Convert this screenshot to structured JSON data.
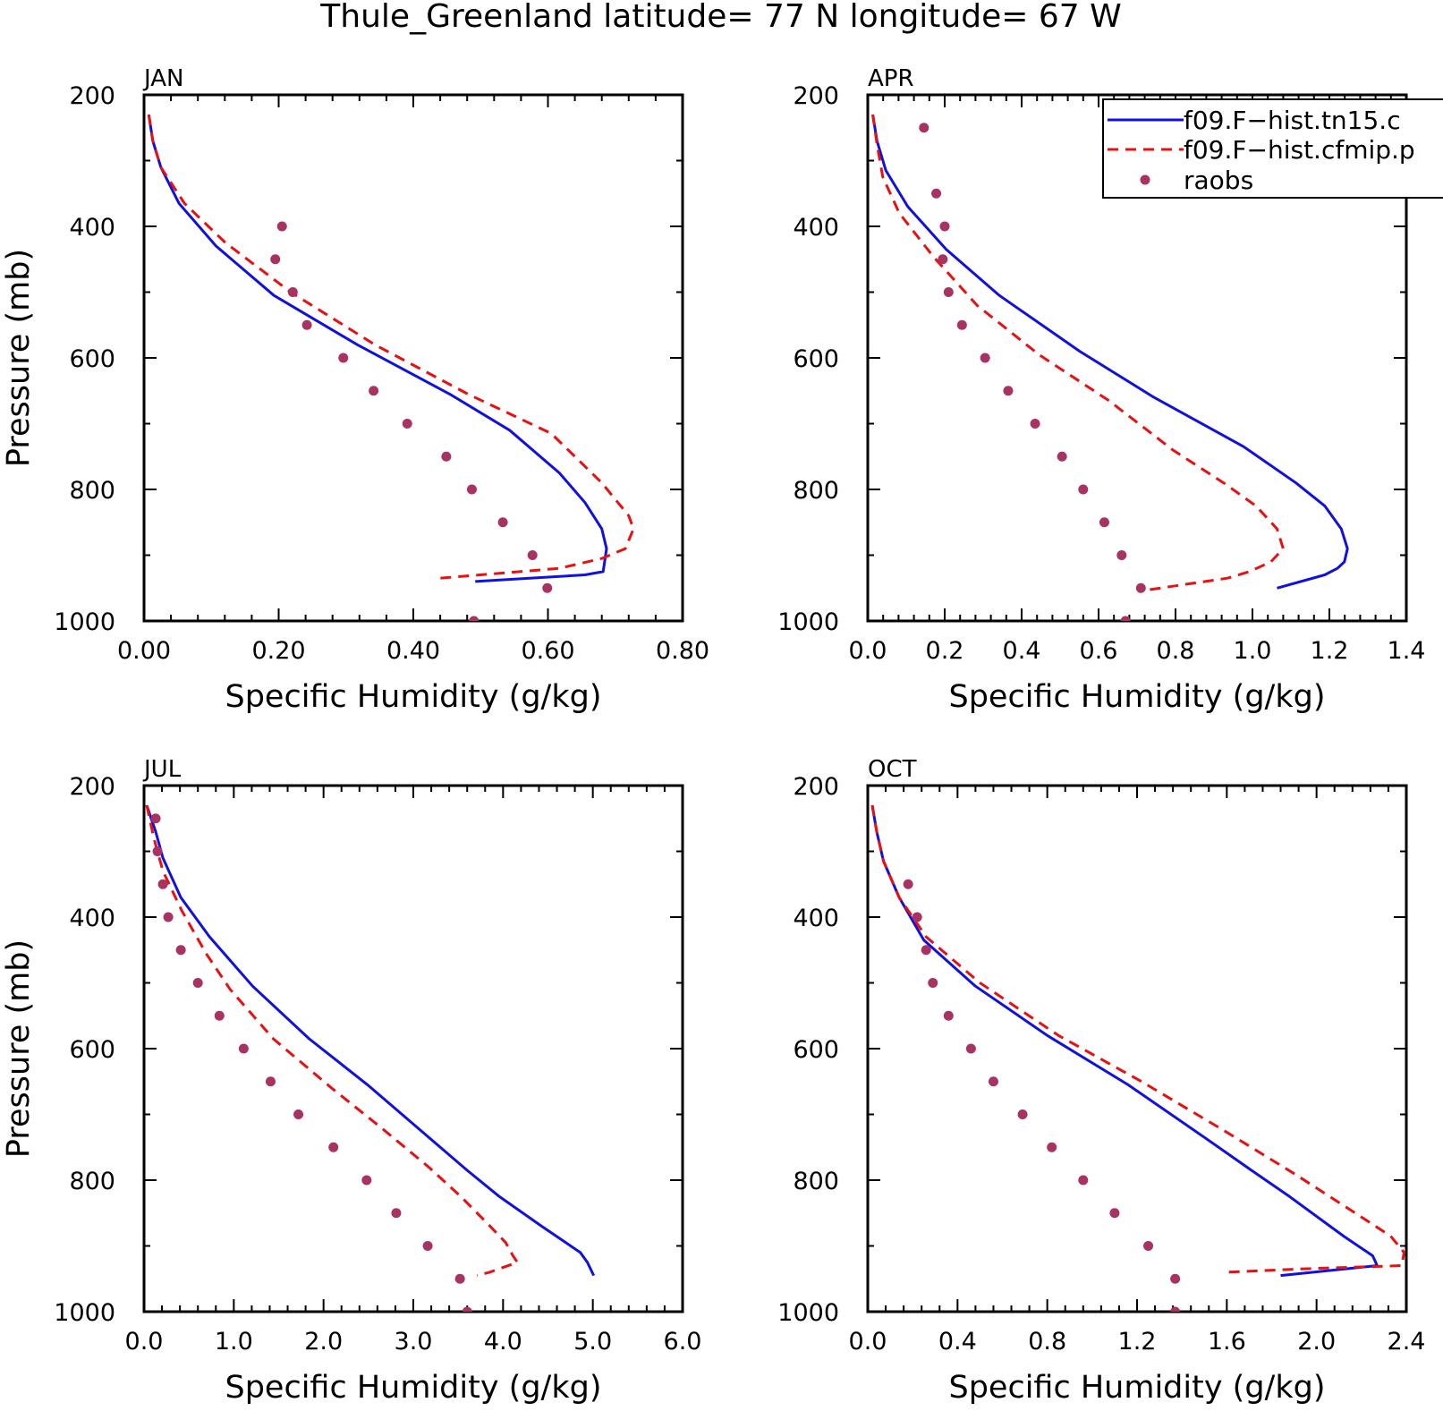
{
  "title": "Thule_Greenland  latitude= 77 N longitude= 67 W",
  "colors": {
    "model1": "#1010e0",
    "model2": "#e81010",
    "raobs": "#a83262"
  },
  "legend": {
    "placement": "top-right of APR panel",
    "entries": [
      {
        "label": "f09.F−hist.tn15.c",
        "style": "solid",
        "color": "#1010e0"
      },
      {
        "label": "f09.F−hist.cfmip.p",
        "style": "dashed",
        "color": "#e81010"
      },
      {
        "label": "raobs",
        "style": "marker",
        "color": "#a83262"
      }
    ]
  },
  "chart_data": [
    {
      "type": "line",
      "panel_label": "JAN",
      "xlabel": "Specific Humidity (g/kg)",
      "ylabel": "Pressure (mb)",
      "xlim": [
        0,
        0.8
      ],
      "ylim": [
        200,
        1000
      ],
      "y_inverted": true,
      "xticks": [
        "0.00",
        "0.20",
        "0.40",
        "0.60",
        "0.80"
      ],
      "yticks": [
        "200",
        "400",
        "600",
        "800",
        "1000"
      ],
      "series": [
        {
          "name": "f09.F−hist.tn15.c",
          "style": "solid",
          "points": [
            [
              0.007,
              230
            ],
            [
              0.013,
              270
            ],
            [
              0.025,
              310
            ],
            [
              0.052,
              365
            ],
            [
              0.107,
              430
            ],
            [
              0.193,
              505
            ],
            [
              0.317,
              580
            ],
            [
              0.454,
              655
            ],
            [
              0.543,
              710
            ],
            [
              0.617,
              775
            ],
            [
              0.655,
              820
            ],
            [
              0.68,
              860
            ],
            [
              0.687,
              890
            ],
            [
              0.682,
              925
            ],
            [
              0.655,
              930
            ],
            [
              0.492,
              940
            ]
          ]
        },
        {
          "name": "f09.F−hist.cfmip.p",
          "style": "dashed",
          "points": [
            [
              0.007,
              230
            ],
            [
              0.013,
              270
            ],
            [
              0.025,
              310
            ],
            [
              0.06,
              365
            ],
            [
              0.121,
              425
            ],
            [
              0.218,
              500
            ],
            [
              0.343,
              580
            ],
            [
              0.481,
              655
            ],
            [
              0.605,
              715
            ],
            [
              0.68,
              790
            ],
            [
              0.72,
              840
            ],
            [
              0.727,
              860
            ],
            [
              0.715,
              890
            ],
            [
              0.68,
              905
            ],
            [
              0.617,
              920
            ],
            [
              0.44,
              935
            ]
          ]
        },
        {
          "name": "raobs",
          "style": "marker",
          "points": [
            [
              0.205,
              400
            ],
            [
              0.195,
              450
            ],
            [
              0.221,
              500
            ],
            [
              0.242,
              550
            ],
            [
              0.296,
              600
            ],
            [
              0.341,
              650
            ],
            [
              0.391,
              700
            ],
            [
              0.449,
              750
            ],
            [
              0.487,
              800
            ],
            [
              0.533,
              850
            ],
            [
              0.577,
              900
            ],
            [
              0.599,
              950
            ],
            [
              0.49,
              1000
            ]
          ]
        }
      ]
    },
    {
      "type": "line",
      "panel_label": "APR",
      "xlabel": "Specific Humidity (g/kg)",
      "ylabel": "",
      "xlim": [
        0,
        1.4
      ],
      "ylim": [
        200,
        1000
      ],
      "y_inverted": true,
      "xticks": [
        "0.0",
        "0.2",
        "0.4",
        "0.6",
        "0.8",
        "1.0",
        "1.2",
        "1.4"
      ],
      "yticks": [
        "200",
        "400",
        "600",
        "800",
        "1000"
      ],
      "series": [
        {
          "name": "f09.F−hist.tn15.c",
          "style": "solid",
          "points": [
            [
              0.013,
              230
            ],
            [
              0.024,
              270
            ],
            [
              0.047,
              315
            ],
            [
              0.104,
              370
            ],
            [
              0.204,
              435
            ],
            [
              0.342,
              505
            ],
            [
              0.551,
              590
            ],
            [
              0.744,
              660
            ],
            [
              0.977,
              735
            ],
            [
              1.113,
              790
            ],
            [
              1.188,
              825
            ],
            [
              1.231,
              860
            ],
            [
              1.247,
              890
            ],
            [
              1.239,
              910
            ],
            [
              1.221,
              920
            ],
            [
              1.188,
              930
            ],
            [
              1.064,
              950
            ]
          ]
        },
        {
          "name": "f09.F−hist.cfmip.p",
          "style": "dashed",
          "points": [
            [
              0.013,
              230
            ],
            [
              0.024,
              275
            ],
            [
              0.039,
              325
            ],
            [
              0.082,
              380
            ],
            [
              0.169,
              445
            ],
            [
              0.284,
              520
            ],
            [
              0.445,
              595
            ],
            [
              0.627,
              665
            ],
            [
              0.793,
              740
            ],
            [
              0.925,
              790
            ],
            [
              1.009,
              825
            ],
            [
              1.064,
              860
            ],
            [
              1.08,
              890
            ],
            [
              1.048,
              910
            ],
            [
              0.992,
              925
            ],
            [
              0.935,
              935
            ],
            [
              0.703,
              955
            ]
          ]
        },
        {
          "name": "raobs",
          "style": "marker",
          "points": [
            [
              0.146,
              250
            ],
            [
              0.178,
              350
            ],
            [
              0.2,
              400
            ],
            [
              0.195,
              450
            ],
            [
              0.21,
              500
            ],
            [
              0.245,
              550
            ],
            [
              0.305,
              600
            ],
            [
              0.365,
              650
            ],
            [
              0.435,
              700
            ],
            [
              0.505,
              750
            ],
            [
              0.56,
              800
            ],
            [
              0.615,
              850
            ],
            [
              0.66,
              900
            ],
            [
              0.71,
              950
            ],
            [
              0.67,
              1000
            ]
          ]
        }
      ]
    },
    {
      "type": "line",
      "panel_label": "JUL",
      "xlabel": "Specific Humidity (g/kg)",
      "ylabel": "Pressure (mb)",
      "xlim": [
        0,
        6
      ],
      "ylim": [
        200,
        1000
      ],
      "y_inverted": true,
      "xticks": [
        "0.0",
        "1.0",
        "2.0",
        "3.0",
        "4.0",
        "5.0",
        "6.0"
      ],
      "yticks": [
        "200",
        "400",
        "600",
        "800",
        "1000"
      ],
      "series": [
        {
          "name": "f09.F−hist.tn15.c",
          "style": "solid",
          "points": [
            [
              0.03,
              230
            ],
            [
              0.13,
              270
            ],
            [
              0.21,
              310
            ],
            [
              0.41,
              370
            ],
            [
              0.73,
              430
            ],
            [
              1.21,
              505
            ],
            [
              1.84,
              585
            ],
            [
              2.49,
              655
            ],
            [
              3.13,
              730
            ],
            [
              3.6,
              785
            ],
            [
              3.96,
              825
            ],
            [
              4.43,
              870
            ],
            [
              4.86,
              910
            ],
            [
              4.94,
              925
            ],
            [
              5.01,
              945
            ]
          ]
        },
        {
          "name": "f09.F−hist.cfmip.p",
          "style": "dashed",
          "points": [
            [
              0.03,
              230
            ],
            [
              0.11,
              280
            ],
            [
              0.21,
              330
            ],
            [
              0.42,
              390
            ],
            [
              0.69,
              455
            ],
            [
              0.96,
              510
            ],
            [
              1.44,
              585
            ],
            [
              2.09,
              660
            ],
            [
              2.64,
              720
            ],
            [
              3.17,
              780
            ],
            [
              3.53,
              825
            ],
            [
              3.82,
              865
            ],
            [
              4.03,
              895
            ],
            [
              4.11,
              915
            ],
            [
              4.16,
              925
            ],
            [
              3.85,
              940
            ],
            [
              3.71,
              945
            ]
          ]
        },
        {
          "name": "raobs",
          "style": "marker",
          "points": [
            [
              0.13,
              250
            ],
            [
              0.15,
              300
            ],
            [
              0.21,
              350
            ],
            [
              0.27,
              400
            ],
            [
              0.41,
              450
            ],
            [
              0.6,
              500
            ],
            [
              0.84,
              550
            ],
            [
              1.11,
              600
            ],
            [
              1.41,
              650
            ],
            [
              1.72,
              700
            ],
            [
              2.11,
              750
            ],
            [
              2.48,
              800
            ],
            [
              2.81,
              850
            ],
            [
              3.16,
              900
            ],
            [
              3.52,
              950
            ],
            [
              3.6,
              1000
            ]
          ]
        }
      ]
    },
    {
      "type": "line",
      "panel_label": "OCT",
      "xlabel": "Specific Humidity (g/kg)",
      "ylabel": "",
      "xlim": [
        0,
        2.4
      ],
      "ylim": [
        200,
        1000
      ],
      "y_inverted": true,
      "xticks": [
        "0.0",
        "0.4",
        "0.8",
        "1.2",
        "1.6",
        "2.0",
        "2.4"
      ],
      "yticks": [
        "200",
        "400",
        "600",
        "800",
        "1000"
      ],
      "series": [
        {
          "name": "f09.F−hist.tn15.c",
          "style": "solid",
          "points": [
            [
              0.02,
              230
            ],
            [
              0.04,
              270
            ],
            [
              0.07,
              315
            ],
            [
              0.14,
              370
            ],
            [
              0.25,
              435
            ],
            [
              0.48,
              505
            ],
            [
              0.8,
              580
            ],
            [
              1.16,
              655
            ],
            [
              1.5,
              735
            ],
            [
              1.71,
              785
            ],
            [
              1.88,
              825
            ],
            [
              2.12,
              885
            ],
            [
              2.25,
              915
            ],
            [
              2.27,
              930
            ],
            [
              1.84,
              945
            ]
          ]
        },
        {
          "name": "f09.F−hist.cfmip.p",
          "style": "dashed",
          "points": [
            [
              0.02,
              230
            ],
            [
              0.04,
              270
            ],
            [
              0.07,
              315
            ],
            [
              0.14,
              370
            ],
            [
              0.26,
              430
            ],
            [
              0.5,
              500
            ],
            [
              0.85,
              580
            ],
            [
              1.22,
              650
            ],
            [
              1.59,
              725
            ],
            [
              1.9,
              790
            ],
            [
              2.15,
              845
            ],
            [
              2.33,
              885
            ],
            [
              2.39,
              910
            ],
            [
              2.38,
              930
            ],
            [
              1.93,
              935
            ],
            [
              1.6,
              940
            ]
          ]
        },
        {
          "name": "raobs",
          "style": "marker",
          "points": [
            [
              0.18,
              350
            ],
            [
              0.22,
              400
            ],
            [
              0.26,
              450
            ],
            [
              0.29,
              500
            ],
            [
              0.36,
              550
            ],
            [
              0.46,
              600
            ],
            [
              0.56,
              650
            ],
            [
              0.69,
              700
            ],
            [
              0.82,
              750
            ],
            [
              0.96,
              800
            ],
            [
              1.1,
              850
            ],
            [
              1.25,
              900
            ],
            [
              1.37,
              950
            ],
            [
              1.37,
              1000
            ]
          ]
        }
      ]
    }
  ]
}
